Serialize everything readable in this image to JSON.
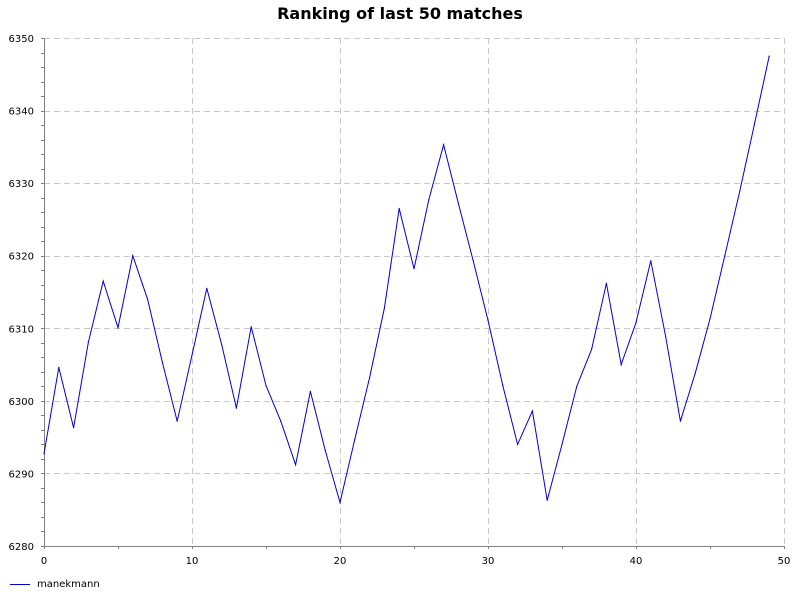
{
  "chart_data": {
    "type": "line",
    "title": "Ranking of last 50 matches",
    "xlabel": "",
    "ylabel": "",
    "xlim": [
      0,
      50
    ],
    "ylim": [
      6280,
      6350
    ],
    "x_ticks": [
      0,
      10,
      20,
      30,
      40,
      50
    ],
    "y_ticks": [
      6280,
      6290,
      6300,
      6310,
      6320,
      6330,
      6340,
      6350
    ],
    "grid": true,
    "legend_position": "bottom-left",
    "series": [
      {
        "name": "manekmann",
        "color": "#0000cc",
        "x": [
          0,
          1,
          2,
          3,
          4,
          5,
          6,
          7,
          8,
          9,
          10,
          11,
          12,
          13,
          14,
          15,
          16,
          17,
          18,
          19,
          20,
          21,
          22,
          23,
          24,
          25,
          26,
          27,
          28,
          29,
          30,
          31,
          32,
          33,
          34,
          35,
          36,
          37,
          38,
          39,
          40,
          41,
          42,
          43,
          44,
          45,
          46,
          47,
          48,
          49
        ],
        "values": [
          6292.7,
          6304.6,
          6296.3,
          6308.1,
          6316.5,
          6310.1,
          6320.0,
          6314.0,
          6305.3,
          6297.2,
          6306.3,
          6315.5,
          6307.8,
          6299.0,
          6310.2,
          6302.1,
          6297.2,
          6291.2,
          6301.3,
          6293.2,
          6286.0,
          6294.7,
          6303.2,
          6312.8,
          6326.5,
          6318.2,
          6327.7,
          6335.3,
          6327.2,
          6319.3,
          6311.1,
          6302.1,
          6294.0,
          6298.6,
          6286.3,
          6294.0,
          6302.0,
          6307.1,
          6316.2,
          6305.0,
          6310.8,
          6319.3,
          6308.9,
          6297.2,
          6303.8,
          6311.3,
          6320.0,
          6328.8,
          6338.1,
          6347.5
        ]
      }
    ]
  }
}
